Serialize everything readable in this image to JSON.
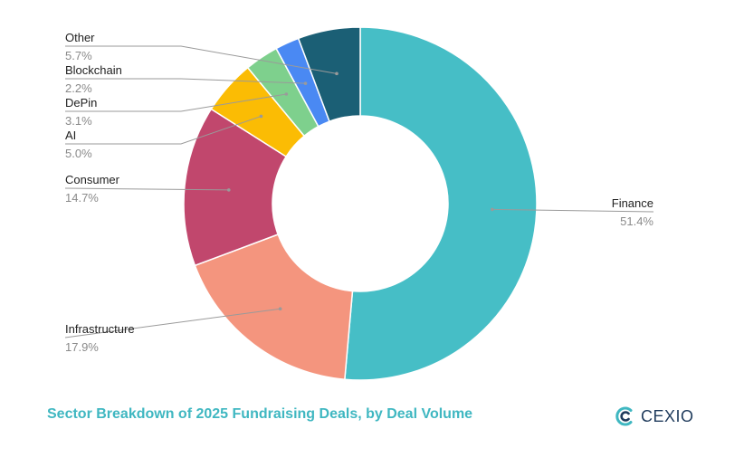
{
  "chart_data": {
    "type": "pie",
    "donut": true,
    "title": "Sector Breakdown of 2025 Fundraising  Deals, by Deal Volume",
    "legend": "none",
    "slices": [
      {
        "label": "Finance",
        "value": 51.4,
        "value_label": "51.4%",
        "color": "#46bec6"
      },
      {
        "label": "Infrastructure",
        "value": 17.9,
        "value_label": "17.9%",
        "color": "#f4957e"
      },
      {
        "label": "Consumer",
        "value": 14.7,
        "value_label": "14.7%",
        "color": "#c1476d"
      },
      {
        "label": "AI",
        "value": 5.0,
        "value_label": "5.0%",
        "color": "#fbbc04"
      },
      {
        "label": "DePin",
        "value": 3.1,
        "value_label": "3.1%",
        "color": "#7ed08d"
      },
      {
        "label": "Blockchain",
        "value": 2.2,
        "value_label": "2.2%",
        "color": "#4a89f3"
      },
      {
        "label": "Other",
        "value": 5.7,
        "value_label": "5.7%",
        "color": "#1b5f75"
      }
    ]
  },
  "brand": {
    "name": "CEX.IO",
    "text": "CEXIO",
    "icon": "cex-logo-icon",
    "color": "#1f3b5c"
  }
}
